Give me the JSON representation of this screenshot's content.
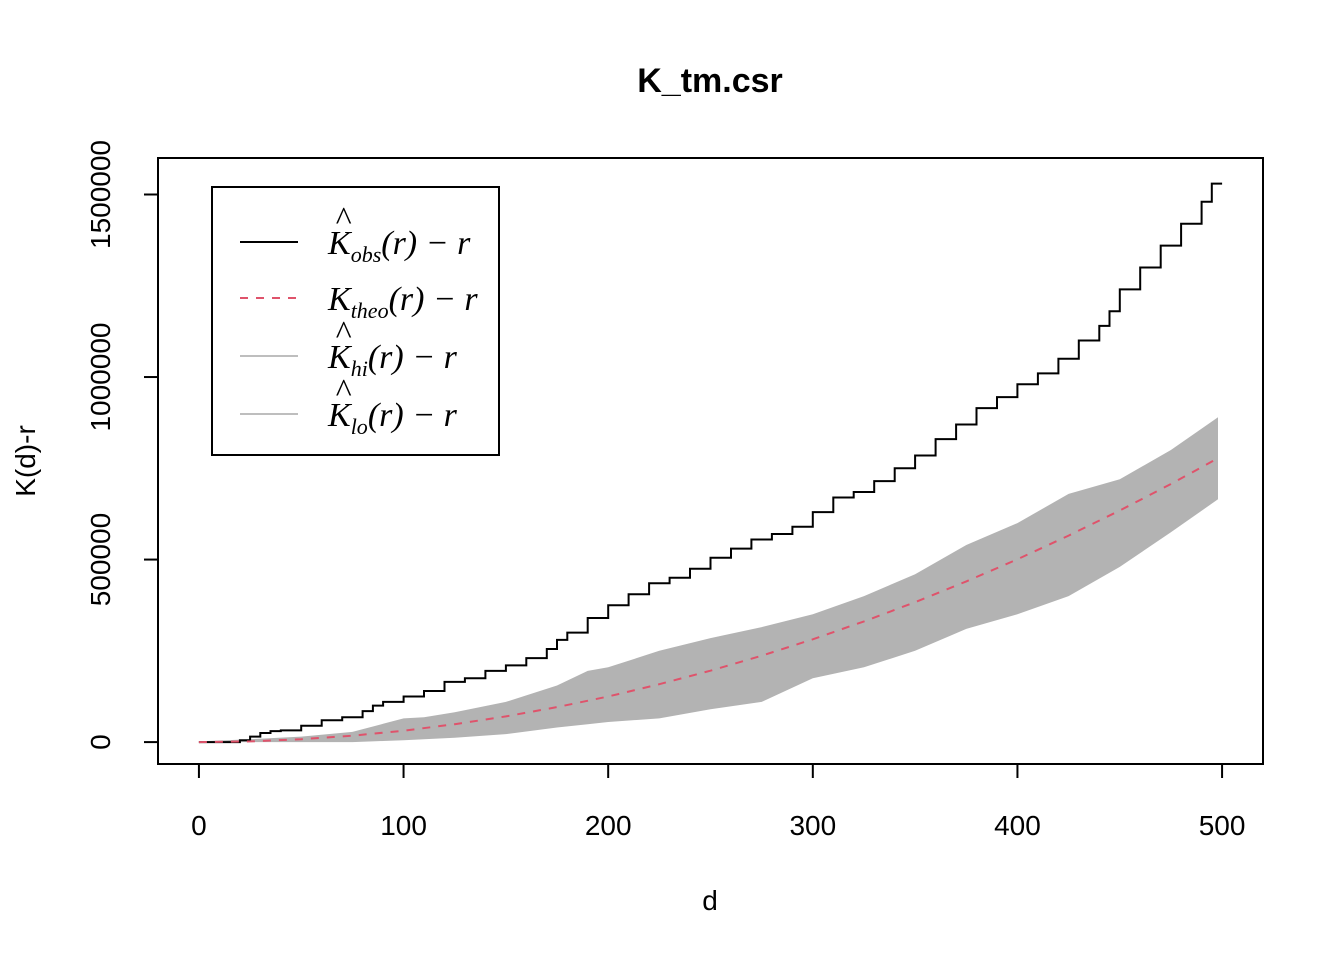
{
  "chart_data": {
    "type": "line",
    "title": "K_tm.csr",
    "xlabel": "d",
    "ylabel": "K(d)-r",
    "xlim": [
      -20,
      520
    ],
    "ylim": [
      -60000,
      1600000
    ],
    "xticks": [
      "0",
      "100",
      "200",
      "300",
      "400",
      "500"
    ],
    "xtick_values": [
      0,
      100,
      200,
      300,
      400,
      500
    ],
    "yticks": [
      "0",
      "500000",
      "1000000",
      "1500000"
    ],
    "ytick_values": [
      0,
      500000,
      1000000,
      1500000
    ],
    "grid": false,
    "legend_position": "top-left",
    "legend": [
      {
        "base": "K",
        "hat": true,
        "sub": "obs",
        "tail": "(r) − r",
        "style": "solid",
        "color": "#000000"
      },
      {
        "base": "K",
        "hat": false,
        "sub": "theo",
        "tail": "(r) − r",
        "style": "dashed",
        "color": "#DF536B"
      },
      {
        "base": "K",
        "hat": true,
        "sub": "hi",
        "tail": "(r) − r",
        "style": "solid",
        "color": "#BEBEBE"
      },
      {
        "base": "K",
        "hat": true,
        "sub": "lo",
        "tail": "(r) − r",
        "style": "solid",
        "color": "#BEBEBE"
      }
    ],
    "colors": {
      "obs": "#000000",
      "theo": "#DF536B",
      "envelope": "#B3B3B3"
    },
    "series": [
      {
        "key": "obs",
        "role": "obs",
        "x": [
          0,
          10,
          20,
          25,
          30,
          35,
          40,
          50,
          60,
          70,
          80,
          85,
          90,
          100,
          110,
          120,
          130,
          140,
          150,
          160,
          170,
          175,
          180,
          190,
          200,
          210,
          220,
          230,
          240,
          250,
          260,
          270,
          280,
          290,
          300,
          310,
          320,
          330,
          340,
          350,
          360,
          370,
          380,
          390,
          400,
          410,
          420,
          430,
          440,
          445,
          450,
          460,
          470,
          480,
          490,
          495,
          500
        ],
        "y": [
          0,
          0,
          5000,
          15000,
          25000,
          30000,
          32000,
          45000,
          60000,
          68000,
          85000,
          100000,
          110000,
          125000,
          140000,
          165000,
          175000,
          195000,
          210000,
          230000,
          255000,
          280000,
          300000,
          340000,
          375000,
          405000,
          435000,
          450000,
          475000,
          505000,
          530000,
          555000,
          570000,
          590000,
          630000,
          670000,
          685000,
          715000,
          750000,
          785000,
          830000,
          870000,
          915000,
          945000,
          980000,
          1010000,
          1050000,
          1100000,
          1140000,
          1180000,
          1240000,
          1300000,
          1360000,
          1420000,
          1480000,
          1530000,
          1530000
        ]
      },
      {
        "key": "theo",
        "role": "theo",
        "x": [
          0,
          25,
          50,
          75,
          100,
          125,
          150,
          175,
          200,
          225,
          250,
          275,
          300,
          325,
          350,
          375,
          400,
          425,
          450,
          475,
          498
        ],
        "y": [
          0,
          1900,
          7800,
          17600,
          31300,
          48900,
          70400,
          95800,
          125000,
          158500,
          195700,
          236800,
          281700,
          330500,
          383300,
          440100,
          500800,
          565600,
          634300,
          706900,
          777800
        ]
      },
      {
        "key": "hi",
        "role": "hi",
        "x": [
          0,
          25,
          50,
          75,
          90,
          100,
          110,
          125,
          150,
          175,
          190,
          200,
          225,
          250,
          275,
          300,
          325,
          350,
          375,
          400,
          425,
          450,
          475,
          498
        ],
        "y": [
          2000,
          8000,
          15000,
          28000,
          50000,
          65000,
          68000,
          82000,
          110000,
          155000,
          195000,
          205000,
          250000,
          285000,
          315000,
          350000,
          400000,
          460000,
          540000,
          600000,
          680000,
          720000,
          800000,
          890000
        ]
      },
      {
        "key": "lo",
        "role": "lo",
        "x": [
          0,
          25,
          50,
          75,
          100,
          125,
          150,
          175,
          200,
          225,
          250,
          275,
          300,
          325,
          350,
          375,
          400,
          425,
          450,
          475,
          498
        ],
        "y": [
          0,
          0,
          0,
          0,
          5000,
          12000,
          22000,
          40000,
          55000,
          65000,
          90000,
          110000,
          175000,
          205000,
          250000,
          310000,
          350000,
          400000,
          480000,
          575000,
          665000
        ]
      }
    ]
  }
}
